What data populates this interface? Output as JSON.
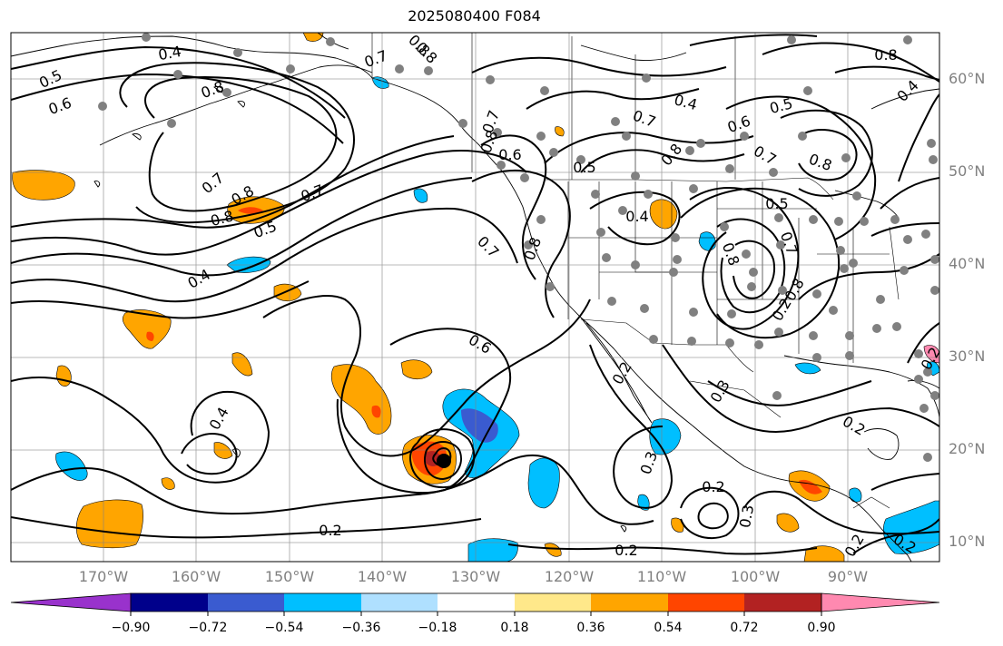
{
  "title": "2025080400 F084",
  "lat_labels": [
    "60°N",
    "50°N",
    "40°N",
    "30°N",
    "20°N",
    "10°N"
  ],
  "lon_labels": [
    "170°W",
    "160°W",
    "150°W",
    "140°W",
    "130°W",
    "120°W",
    "110°W",
    "100°W",
    "90°W"
  ],
  "contour_labels": [
    "0.5",
    "0.4",
    "0.6",
    "0.8",
    "0.7",
    "0.8",
    "0.7",
    "0.8",
    "0.5",
    "0.8",
    "0.7",
    "0.8",
    "0.7",
    "0.8",
    "0.5",
    "0.6",
    "0.4",
    "0.4",
    "0.6",
    "0.4",
    "0.7",
    "0.8",
    "0.8",
    "0.7",
    "0.5",
    "0.8",
    "0.5",
    "0.4",
    "0.8",
    "0.7",
    "0.7",
    "0.8",
    "0.8",
    "0.6",
    "0.2",
    "0.2",
    "0.3",
    "0.3",
    "0.2",
    "0.4",
    "0.2",
    "0.2",
    "0.2",
    "0.3",
    "0.2",
    "0.2",
    "0.2"
  ],
  "colorbar": {
    "ticks": [
      "−0.90",
      "−0.72",
      "−0.54",
      "−0.36",
      "−0.18",
      "0.18",
      "0.36",
      "0.54",
      "0.72",
      "0.90"
    ],
    "colors": [
      "#9932cc",
      "#00008b",
      "#3a5bd0",
      "#00bfff",
      "#afe0ff",
      "#ffffff",
      "#ffe88a",
      "#ffa500",
      "#ff4500",
      "#b22222",
      "#ff89b0"
    ]
  }
}
